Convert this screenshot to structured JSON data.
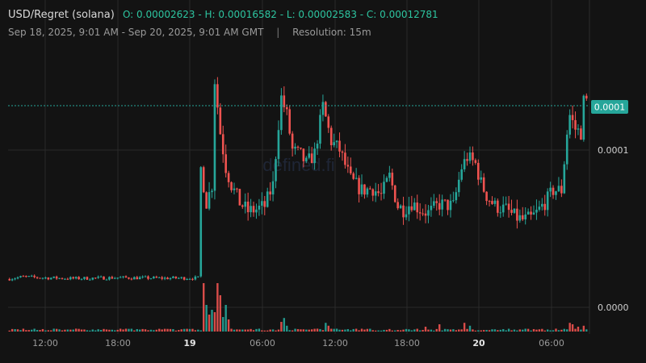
{
  "header": {
    "pair": "USD/Regret (solana)",
    "ohlc": "O: 0.00002623 - H: 0.00016582 - L: 0.00002583 - C: 0.00012781",
    "range": "Sep 18, 2025, 9:01 AM - Sep 20, 2025, 9:01 AM GMT",
    "separator": "|",
    "resolution": "Resolution: 15m"
  },
  "watermark": "defined.fi",
  "colors": {
    "background": "#131313",
    "up": "#26a69a",
    "down": "#ef5350",
    "grid": "#2a2a2a",
    "text": "#9a9a9a",
    "last_price_badge": "#26a69a"
  },
  "chart_data": {
    "type": "candlestick",
    "resolution": "15m",
    "x_tick_labels": [
      "12:00",
      "18:00",
      "19",
      "06:00",
      "12:00",
      "18:00",
      "20",
      "06:00"
    ],
    "y_tick_labels": [
      "0.0001",
      "0.0000"
    ],
    "last_price_label": "0.0001",
    "last_price": 0.00012781,
    "grid": true,
    "volume_pane": true,
    "price_waypoints": [
      [
        0,
        2.62e-05
      ],
      [
        6,
        2.75e-05
      ],
      [
        12,
        2.7e-05
      ],
      [
        24,
        2.65e-05
      ],
      [
        40,
        2.7e-05
      ],
      [
        56,
        2.67e-05
      ],
      [
        69,
        2.68e-05
      ],
      [
        70,
        9e-05
      ],
      [
        72,
        7e-05
      ],
      [
        74,
        8e-05
      ],
      [
        75,
        0.00014
      ],
      [
        77,
        0.00011
      ],
      [
        79,
        9e-05
      ],
      [
        81,
        8e-05
      ],
      [
        84,
        7e-05
      ],
      [
        87,
        6.5e-05
      ],
      [
        90,
        6.6e-05
      ],
      [
        93,
        6.8e-05
      ],
      [
        96,
        8e-05
      ],
      [
        98,
        0.000115
      ],
      [
        99,
        0.00013
      ],
      [
        101,
        0.00012
      ],
      [
        103,
        0.0001
      ],
      [
        106,
        9.7e-05
      ],
      [
        108,
        9.2e-05
      ],
      [
        111,
        9.8e-05
      ],
      [
        114,
        0.000125
      ],
      [
        117,
        0.000105
      ],
      [
        120,
        0.0001
      ],
      [
        124,
        8.3e-05
      ],
      [
        128,
        7.7e-05
      ],
      [
        132,
        7.8e-05
      ],
      [
        135,
        7.4e-05
      ],
      [
        138,
        8.5e-05
      ],
      [
        141,
        6.8e-05
      ],
      [
        143,
        6.6e-05
      ],
      [
        146,
        7e-05
      ],
      [
        149,
        6.6e-05
      ],
      [
        152,
        6.4e-05
      ],
      [
        156,
        6.9e-05
      ],
      [
        161,
        6.8e-05
      ],
      [
        164,
        9e-05
      ],
      [
        166,
        9.6e-05
      ],
      [
        169,
        9.2e-05
      ],
      [
        171,
        8.1e-05
      ],
      [
        173,
        7.4e-05
      ],
      [
        176,
        6.8e-05
      ],
      [
        180,
        6.6e-05
      ],
      [
        183,
        6.2e-05
      ],
      [
        186,
        6e-05
      ],
      [
        189,
        6.1e-05
      ],
      [
        191,
        6.4e-05
      ],
      [
        193,
        6.8e-05
      ],
      [
        195,
        7.2e-05
      ],
      [
        197,
        7.7e-05
      ],
      [
        200,
        7.7e-05
      ],
      [
        202,
        0.00011
      ],
      [
        203,
        0.00012
      ],
      [
        205,
        0.000112
      ],
      [
        207,
        0.00011
      ],
      [
        208,
        0.000128
      ]
    ],
    "volume_spikes": [
      [
        70,
        1.0
      ],
      [
        71,
        0.55
      ],
      [
        72,
        0.35
      ],
      [
        73,
        0.45
      ],
      [
        74,
        0.4
      ],
      [
        75,
        1.0
      ],
      [
        76,
        0.75
      ],
      [
        77,
        0.3
      ],
      [
        78,
        0.55
      ],
      [
        79,
        0.25
      ],
      [
        98,
        0.2
      ],
      [
        99,
        0.28
      ],
      [
        100,
        0.12
      ],
      [
        114,
        0.18
      ],
      [
        115,
        0.12
      ],
      [
        150,
        0.1
      ],
      [
        155,
        0.15
      ],
      [
        164,
        0.18
      ],
      [
        166,
        0.12
      ],
      [
        202,
        0.18
      ],
      [
        203,
        0.15
      ],
      [
        205,
        0.1
      ],
      [
        207,
        0.12
      ]
    ]
  }
}
